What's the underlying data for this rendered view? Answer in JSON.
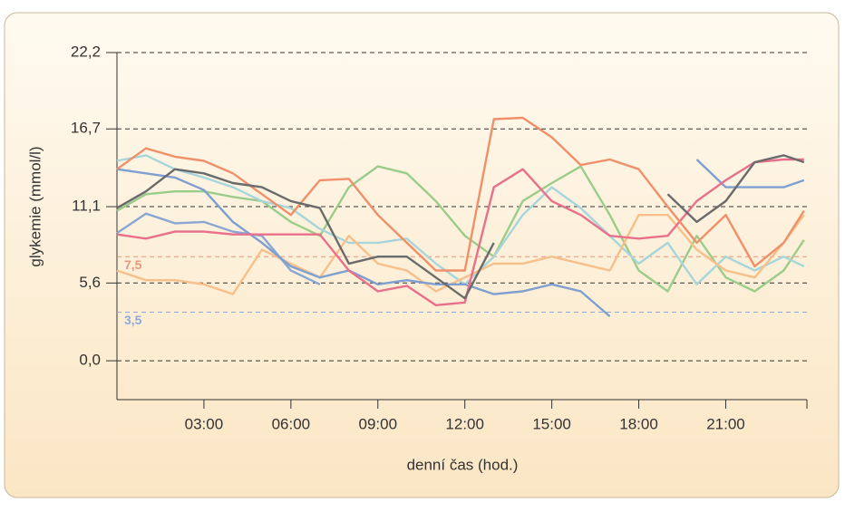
{
  "chart_data": {
    "type": "line",
    "ylabel": "glykemie (mmol/l)",
    "xlabel": "denní čas (hod.)",
    "xlim": [
      0,
      23.8
    ],
    "ylim": [
      -2.8,
      22.2
    ],
    "xticks": [
      {
        "value": 3,
        "label": "03:00"
      },
      {
        "value": 6,
        "label": "06:00"
      },
      {
        "value": 9,
        "label": "09:00"
      },
      {
        "value": 12,
        "label": "12:00"
      },
      {
        "value": 15,
        "label": "15:00"
      },
      {
        "value": 18,
        "label": "18:00"
      },
      {
        "value": 21,
        "label": "21:00"
      }
    ],
    "yticks": [
      {
        "value": 0,
        "label": "0,0"
      },
      {
        "value": 5.6,
        "label": "5,6"
      },
      {
        "value": 11.1,
        "label": "11,1"
      },
      {
        "value": 16.7,
        "label": "16,7"
      },
      {
        "value": 22.2,
        "label": "22,2"
      }
    ],
    "grid": true,
    "reference_lines": [
      {
        "value": 7.5,
        "label": "7,5",
        "color": "#e8967a"
      },
      {
        "value": 3.5,
        "label": "3,5",
        "color": "#8fa8d8"
      }
    ],
    "x": [
      0,
      1,
      2,
      3,
      4,
      5,
      6,
      7,
      8,
      9,
      10,
      11,
      12,
      13,
      14,
      15,
      16,
      17,
      18,
      19,
      20,
      21,
      22,
      23,
      23.7
    ],
    "series": [
      {
        "color": "#9ccc8a",
        "values": [
          10.8,
          12.0,
          12.2,
          12.2,
          11.8,
          11.5,
          10.0,
          9.0,
          12.5,
          14.0,
          13.5,
          11.5,
          9.0,
          7.5,
          11.5,
          12.8,
          14.0,
          10.5,
          6.5,
          5.0,
          9.0,
          6.0,
          5.0,
          6.5,
          8.7
        ]
      },
      {
        "color": "#a6d6dc",
        "values": [
          14.4,
          14.8,
          13.8,
          13.2,
          12.5,
          11.5,
          11.0,
          9.5,
          8.5,
          8.5,
          8.8,
          7.0,
          5.5,
          7.5,
          10.5,
          12.5,
          11.0,
          9.0,
          7.0,
          8.5,
          5.5,
          7.5,
          6.5,
          7.5,
          6.8
        ]
      },
      {
        "color": "#f7c08a",
        "values": [
          6.5,
          5.8,
          5.8,
          5.5,
          4.8,
          8.0,
          7.0,
          6.0,
          9.0,
          7.0,
          6.5,
          5.0,
          6.0,
          7.0,
          7.0,
          7.5,
          7.0,
          6.5,
          10.5,
          10.5,
          8.0,
          6.5,
          6.0,
          8.5,
          10.5
        ]
      },
      {
        "color": "#8aa6d4",
        "values": [
          9.2,
          10.6,
          9.9,
          10.0,
          9.3,
          9.0,
          6.5,
          5.5,
          null,
          null,
          null,
          null,
          null,
          null,
          null,
          null,
          null,
          null,
          null,
          null,
          null,
          null,
          null,
          null,
          null
        ]
      },
      {
        "color": "#7f9fd0",
        "values": [
          13.8,
          13.5,
          13.2,
          12.3,
          10.0,
          8.5,
          6.8,
          6.0,
          6.5,
          5.5,
          5.8,
          5.5,
          5.5,
          4.8,
          5.0,
          5.5,
          5.0,
          3.2,
          null,
          null,
          14.5,
          12.5,
          12.5,
          12.5,
          13.0
        ]
      },
      {
        "color": "#e8708a",
        "values": [
          9.1,
          8.8,
          9.3,
          9.3,
          9.1,
          9.1,
          9.1,
          9.1,
          6.5,
          5.0,
          5.4,
          4.0,
          4.2,
          12.5,
          13.8,
          11.5,
          10.5,
          9.0,
          8.8,
          9.0,
          11.5,
          13.0,
          14.3,
          14.5,
          14.5
        ]
      },
      {
        "color": "#f0906a",
        "values": [
          13.8,
          15.3,
          14.7,
          14.4,
          13.5,
          12.0,
          10.5,
          13.0,
          13.1,
          10.5,
          8.5,
          6.5,
          6.5,
          17.4,
          17.5,
          16.1,
          14.1,
          14.5,
          13.8,
          11.1,
          8.5,
          10.5,
          6.8,
          8.5,
          10.8
        ]
      },
      {
        "color": "#6b6b6b",
        "values": [
          11.0,
          12.2,
          13.8,
          13.5,
          12.8,
          12.5,
          11.5,
          11.0,
          7.0,
          7.5,
          7.5,
          6.0,
          4.5,
          8.5,
          null,
          null,
          null,
          null,
          null,
          12.0,
          10.0,
          11.5,
          14.3,
          14.8,
          14.3
        ]
      }
    ]
  }
}
